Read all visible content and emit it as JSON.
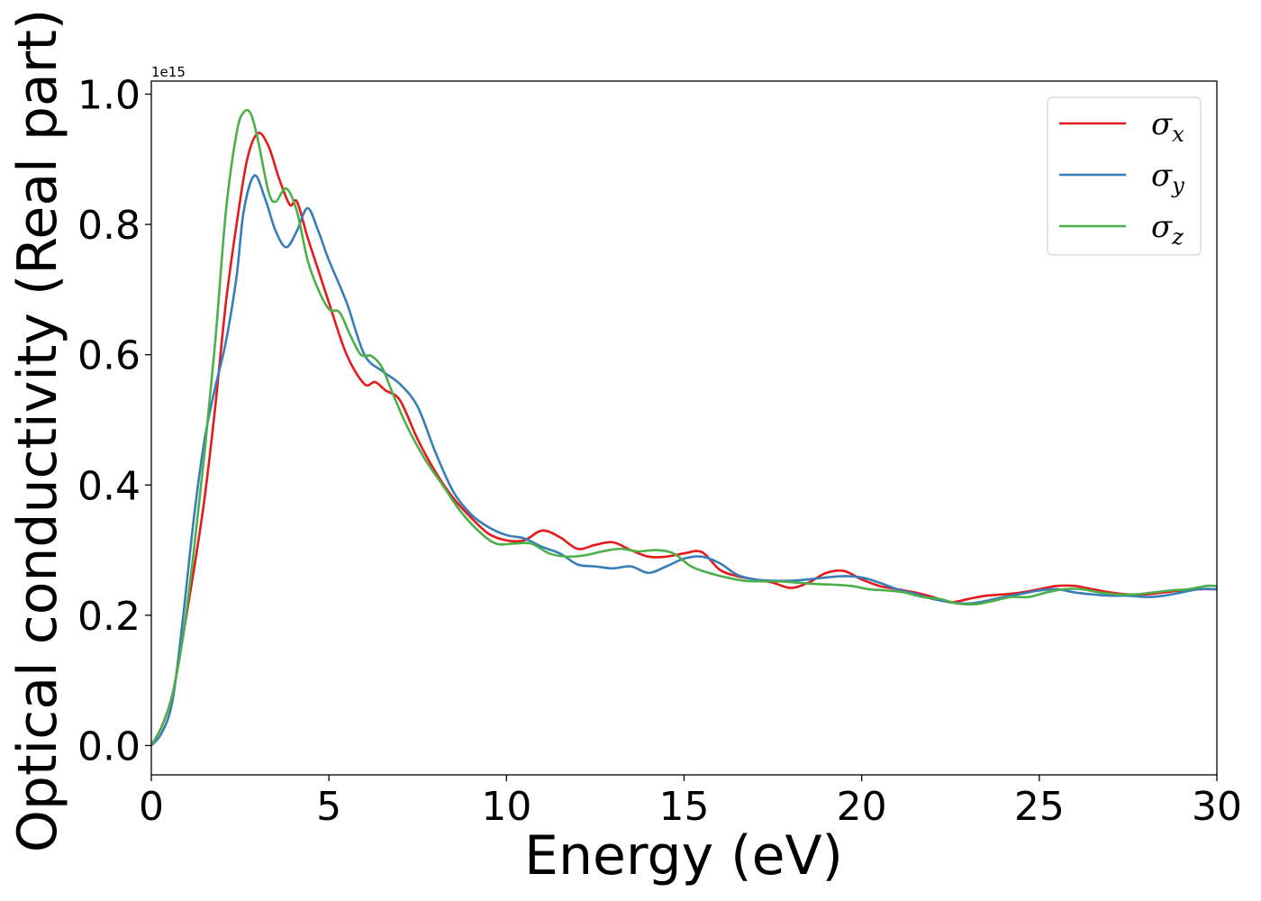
{
  "chart_data": {
    "type": "line",
    "title": "",
    "xlabel": "Energy (eV)",
    "ylabel": "Optical conductivity (Real part)",
    "y_offset_label": "1e15",
    "xlim": [
      0,
      30
    ],
    "ylim": [
      -0.045,
      1.02
    ],
    "xticks": [
      0,
      5,
      10,
      15,
      20,
      25,
      30
    ],
    "xtick_labels": [
      "0",
      "5",
      "10",
      "15",
      "20",
      "25",
      "30"
    ],
    "yticks": [
      0.0,
      0.2,
      0.4,
      0.6,
      0.8,
      1.0
    ],
    "ytick_labels": [
      "0.0",
      "0.2",
      "0.4",
      "0.6",
      "0.8",
      "1.0"
    ],
    "grid": false,
    "legend_position": "top-right",
    "series": [
      {
        "name": "σx",
        "symbol": "σ",
        "subscript": "x",
        "color": "#e41a1c",
        "x": [
          0,
          0.3,
          0.6,
          0.9,
          1.2,
          1.5,
          1.8,
          2.1,
          2.4,
          2.7,
          3.0,
          3.3,
          3.6,
          3.9,
          4.1,
          4.4,
          4.7,
          5.0,
          5.5,
          6.0,
          6.3,
          6.6,
          7.0,
          7.5,
          8.0,
          8.5,
          9.0,
          9.5,
          10.0,
          10.5,
          11.0,
          11.5,
          12.0,
          12.5,
          13.0,
          13.5,
          14.0,
          14.5,
          15.0,
          15.5,
          16.0,
          16.5,
          17.0,
          17.5,
          18.0,
          18.5,
          19.0,
          19.5,
          20.0,
          20.5,
          21.0,
          21.5,
          22.0,
          22.5,
          23.0,
          23.5,
          24.0,
          24.5,
          25.0,
          25.5,
          26.0,
          26.5,
          27.0,
          27.5,
          28.0,
          28.5,
          29.0,
          29.5,
          30.0
        ],
        "y": [
          0.0,
          0.03,
          0.08,
          0.17,
          0.27,
          0.38,
          0.52,
          0.68,
          0.8,
          0.9,
          0.94,
          0.92,
          0.87,
          0.83,
          0.835,
          0.78,
          0.73,
          0.68,
          0.6,
          0.555,
          0.558,
          0.545,
          0.53,
          0.47,
          0.42,
          0.38,
          0.35,
          0.325,
          0.315,
          0.315,
          0.33,
          0.32,
          0.302,
          0.308,
          0.312,
          0.3,
          0.29,
          0.29,
          0.295,
          0.297,
          0.27,
          0.26,
          0.255,
          0.25,
          0.242,
          0.25,
          0.265,
          0.268,
          0.255,
          0.245,
          0.24,
          0.235,
          0.228,
          0.22,
          0.225,
          0.23,
          0.232,
          0.235,
          0.24,
          0.245,
          0.245,
          0.24,
          0.235,
          0.232,
          0.232,
          0.235,
          0.238,
          0.24,
          0.24
        ]
      },
      {
        "name": "σy",
        "symbol": "σ",
        "subscript": "y",
        "color": "#377eb8",
        "x": [
          0,
          0.3,
          0.6,
          0.9,
          1.2,
          1.5,
          1.8,
          2.1,
          2.4,
          2.6,
          2.9,
          3.2,
          3.5,
          3.8,
          4.1,
          4.4,
          4.7,
          5.0,
          5.5,
          6.0,
          6.5,
          7.0,
          7.5,
          8.0,
          8.5,
          9.0,
          9.5,
          10.0,
          10.5,
          11.0,
          11.5,
          12.0,
          12.5,
          13.0,
          13.5,
          14.0,
          14.5,
          15.0,
          15.5,
          16.0,
          16.5,
          17.0,
          17.5,
          18.0,
          18.5,
          19.0,
          19.5,
          20.0,
          20.5,
          21.0,
          21.5,
          22.0,
          22.5,
          23.0,
          23.5,
          24.0,
          24.5,
          25.0,
          25.5,
          26.0,
          26.5,
          27.0,
          27.5,
          28.0,
          28.5,
          29.0,
          29.5,
          30.0
        ],
        "y": [
          0.0,
          0.02,
          0.07,
          0.2,
          0.35,
          0.47,
          0.55,
          0.62,
          0.72,
          0.82,
          0.875,
          0.84,
          0.79,
          0.765,
          0.79,
          0.825,
          0.79,
          0.745,
          0.68,
          0.6,
          0.575,
          0.555,
          0.52,
          0.45,
          0.39,
          0.355,
          0.335,
          0.323,
          0.318,
          0.305,
          0.295,
          0.278,
          0.275,
          0.272,
          0.275,
          0.265,
          0.275,
          0.287,
          0.29,
          0.28,
          0.262,
          0.255,
          0.253,
          0.253,
          0.255,
          0.258,
          0.26,
          0.258,
          0.25,
          0.24,
          0.233,
          0.225,
          0.22,
          0.218,
          0.222,
          0.228,
          0.233,
          0.238,
          0.24,
          0.235,
          0.232,
          0.23,
          0.23,
          0.228,
          0.23,
          0.235,
          0.24,
          0.24
        ]
      },
      {
        "name": "σz",
        "symbol": "σ",
        "subscript": "z",
        "color": "#4daf4a",
        "x": [
          0,
          0.3,
          0.6,
          0.9,
          1.2,
          1.5,
          1.8,
          2.1,
          2.4,
          2.6,
          2.8,
          3.0,
          3.3,
          3.5,
          3.8,
          4.1,
          4.4,
          4.7,
          5.0,
          5.3,
          5.6,
          5.9,
          6.2,
          6.5,
          6.8,
          7.2,
          7.7,
          8.2,
          8.7,
          9.2,
          9.7,
          10.2,
          10.7,
          11.2,
          11.7,
          12.2,
          12.7,
          13.2,
          13.7,
          14.2,
          14.7,
          15.2,
          15.7,
          16.2,
          16.7,
          17.2,
          17.7,
          18.2,
          18.7,
          19.2,
          19.7,
          20.2,
          20.7,
          21.2,
          21.7,
          22.2,
          22.7,
          23.2,
          23.7,
          24.2,
          24.7,
          25.2,
          25.7,
          26.2,
          26.7,
          27.2,
          27.7,
          28.2,
          28.7,
          29.2,
          29.7,
          30.0
        ],
        "y": [
          0.0,
          0.03,
          0.08,
          0.17,
          0.3,
          0.45,
          0.62,
          0.82,
          0.94,
          0.972,
          0.97,
          0.93,
          0.85,
          0.835,
          0.855,
          0.82,
          0.745,
          0.7,
          0.67,
          0.665,
          0.63,
          0.6,
          0.598,
          0.58,
          0.54,
          0.49,
          0.44,
          0.4,
          0.36,
          0.33,
          0.31,
          0.31,
          0.31,
          0.295,
          0.29,
          0.292,
          0.298,
          0.302,
          0.298,
          0.3,
          0.295,
          0.275,
          0.265,
          0.258,
          0.253,
          0.252,
          0.252,
          0.25,
          0.248,
          0.247,
          0.245,
          0.24,
          0.238,
          0.235,
          0.228,
          0.225,
          0.218,
          0.217,
          0.222,
          0.228,
          0.228,
          0.235,
          0.24,
          0.24,
          0.235,
          0.232,
          0.232,
          0.235,
          0.238,
          0.24,
          0.245,
          0.245
        ]
      }
    ]
  }
}
